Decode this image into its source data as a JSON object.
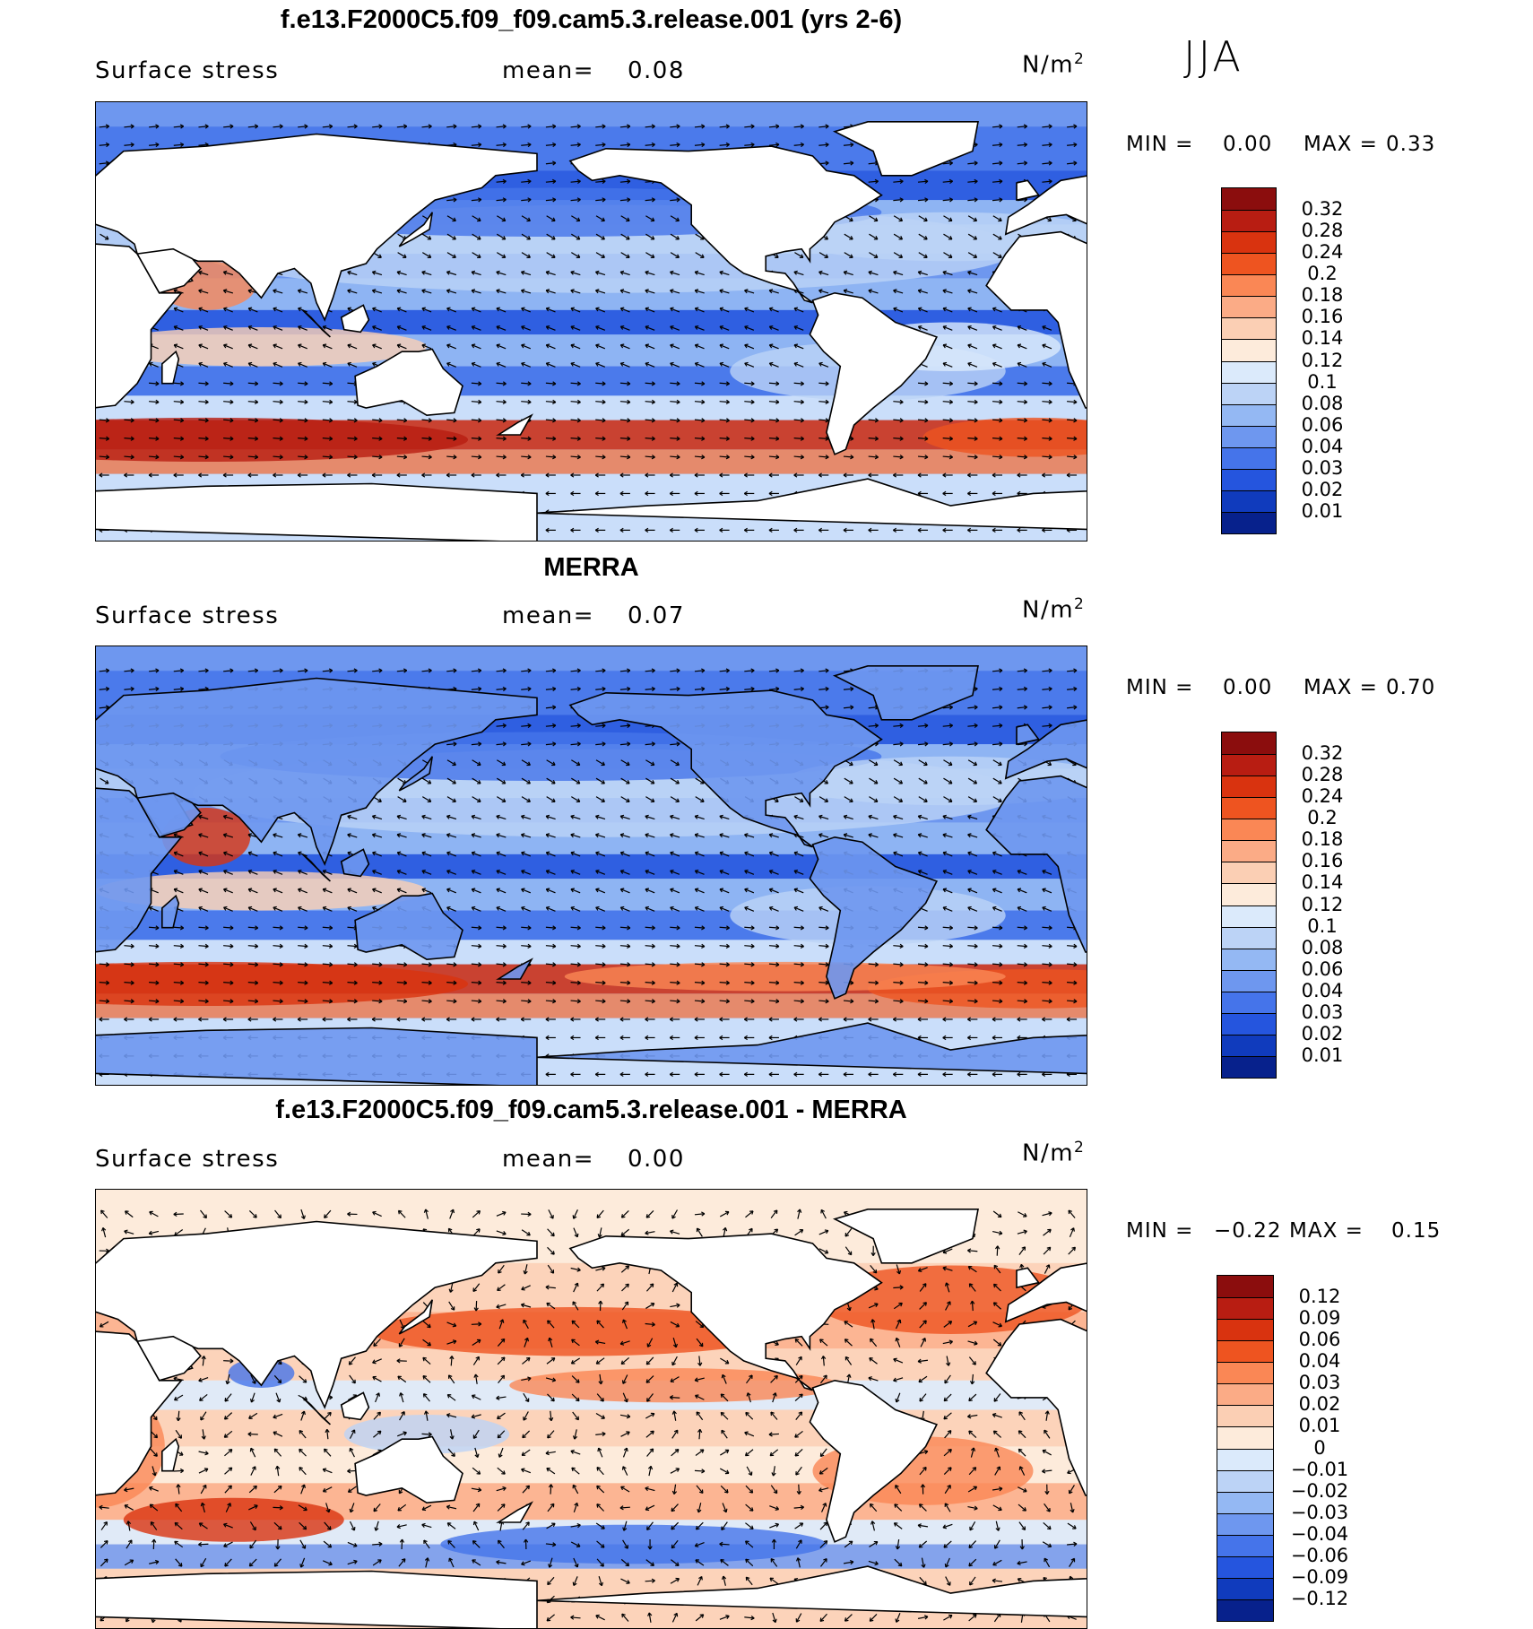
{
  "season": "JJA",
  "chart_data": [
    {
      "type": "heatmap",
      "title": "f.e13.F2000C5.f09_f09.cam5.3.release.001 (yrs 2-6)",
      "left_label": "Surface stress",
      "mean_label": "mean=",
      "mean_value": "0.08",
      "units_base": "N/m",
      "units_exp": "2",
      "min_label": "MIN =",
      "min_value": "0.00",
      "max_label": "MAX =",
      "max_value": "0.33",
      "levels": [
        "0.32",
        "0.28",
        "0.24",
        "0.2",
        "0.18",
        "0.16",
        "0.14",
        "0.12",
        "0.1",
        "0.08",
        "0.06",
        "0.04",
        "0.03",
        "0.02",
        "0.01"
      ],
      "colors": [
        "#8b0d0d",
        "#b81d12",
        "#d9330f",
        "#ee5420",
        "#fa8755",
        "#fbab86",
        "#fbcfb4",
        "#fdebdb",
        "#dbeafb",
        "#bcd3f6",
        "#94b8f3",
        "#6e97ef",
        "#4574ea",
        "#2555de",
        "#103bbd",
        "#07218c"
      ]
    },
    {
      "type": "heatmap",
      "title": "MERRA",
      "left_label": "Surface stress",
      "mean_label": "mean=",
      "mean_value": "0.07",
      "units_base": "N/m",
      "units_exp": "2",
      "min_label": "MIN =",
      "min_value": "0.00",
      "max_label": "MAX =",
      "max_value": "0.70",
      "levels": [
        "0.32",
        "0.28",
        "0.24",
        "0.2",
        "0.18",
        "0.16",
        "0.14",
        "0.12",
        "0.1",
        "0.08",
        "0.06",
        "0.04",
        "0.03",
        "0.02",
        "0.01"
      ],
      "colors": [
        "#8b0d0d",
        "#b81d12",
        "#d9330f",
        "#ee5420",
        "#fa8755",
        "#fbab86",
        "#fbcfb4",
        "#fdebdb",
        "#dbeafb",
        "#bcd3f6",
        "#94b8f3",
        "#6e97ef",
        "#4574ea",
        "#2555de",
        "#103bbd",
        "#07218c"
      ]
    },
    {
      "type": "heatmap",
      "title": "f.e13.F2000C5.f09_f09.cam5.3.release.001 - MERRA",
      "left_label": "Surface stress",
      "mean_label": "mean=",
      "mean_value": "0.00",
      "units_base": "N/m",
      "units_exp": "2",
      "min_label": "MIN =",
      "min_value": "−0.22",
      "max_label": "MAX =",
      "max_value": "0.15",
      "levels": [
        "0.12",
        "0.09",
        "0.06",
        "0.04",
        "0.03",
        "0.02",
        "0.01",
        "0",
        "−0.01",
        "−0.02",
        "−0.03",
        "−0.04",
        "−0.06",
        "−0.09",
        "−0.12"
      ],
      "colors": [
        "#8b0d0d",
        "#b81d12",
        "#d9330f",
        "#ee5420",
        "#fa8755",
        "#fbab86",
        "#fbcfb4",
        "#fdebdb",
        "#dbeafb",
        "#bcd3f6",
        "#94b8f3",
        "#6e97ef",
        "#4574ea",
        "#2555de",
        "#103bbd",
        "#07218c"
      ]
    }
  ]
}
